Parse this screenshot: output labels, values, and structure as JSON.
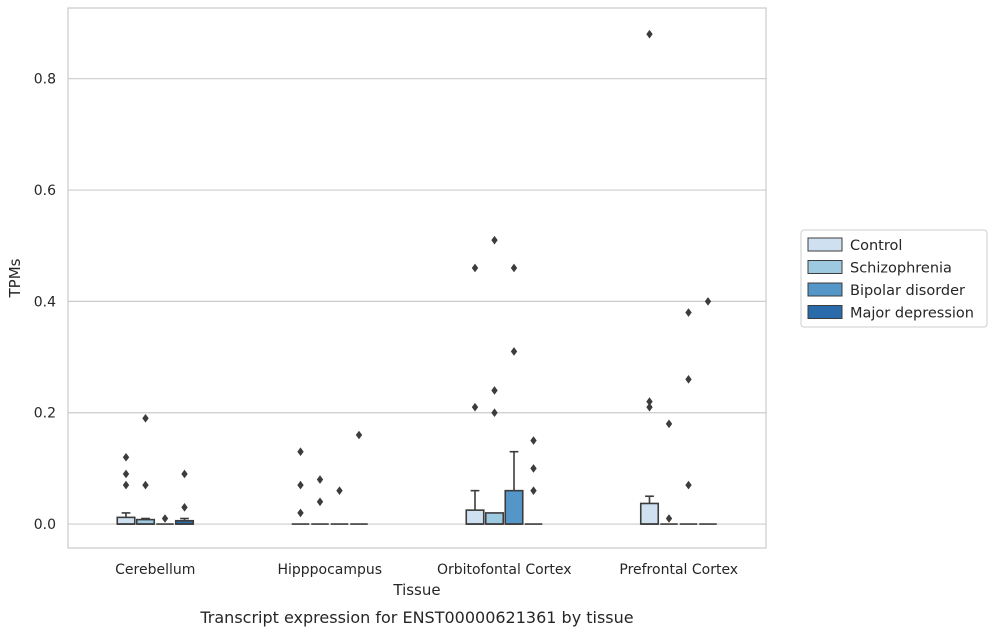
{
  "caption": "Transcript expression for ENST00000621361 by tissue",
  "chart_data": {
    "type": "box",
    "xlabel": "Tissue",
    "ylabel": "TPMs",
    "ylim": [
      -0.043,
      0.927
    ],
    "yticks": [
      0.0,
      0.2,
      0.4,
      0.6,
      0.8
    ],
    "ytick_labels": [
      "0.0",
      "0.2",
      "0.4",
      "0.6",
      "0.8"
    ],
    "grid": "horizontal",
    "legend_position": "right",
    "categories": [
      "Cerebellum",
      "Hipppocampus",
      "Orbitofontal Cortex",
      "Prefrontal Cortex"
    ],
    "series": [
      {
        "name": "Control",
        "color": "#cfe0f1",
        "boxes": [
          {
            "q1": 0.0,
            "median": 0.0,
            "q3": 0.012,
            "whisker_low": 0.0,
            "whisker_high": 0.02,
            "outliers": [
              0.12,
              0.09,
              0.07
            ]
          },
          {
            "q1": 0.0,
            "median": 0.0,
            "q3": 0.0,
            "whisker_low": 0.0,
            "whisker_high": 0.0,
            "outliers": [
              0.13,
              0.07,
              0.02
            ]
          },
          {
            "q1": 0.0,
            "median": 0.0,
            "q3": 0.025,
            "whisker_low": 0.0,
            "whisker_high": 0.06,
            "outliers": [
              0.46,
              0.21
            ]
          },
          {
            "q1": 0.0,
            "median": 0.0,
            "q3": 0.037,
            "whisker_low": 0.0,
            "whisker_high": 0.05,
            "outliers": [
              0.88,
              0.22,
              0.21
            ]
          }
        ]
      },
      {
        "name": "Schizophrenia",
        "color": "#9ecae1",
        "boxes": [
          {
            "q1": 0.0,
            "median": 0.0,
            "q3": 0.008,
            "whisker_low": 0.0,
            "whisker_high": 0.01,
            "outliers": [
              0.19,
              0.07
            ]
          },
          {
            "q1": 0.0,
            "median": 0.0,
            "q3": 0.0,
            "whisker_low": 0.0,
            "whisker_high": 0.0,
            "outliers": [
              0.08,
              0.04
            ]
          },
          {
            "q1": 0.0,
            "median": 0.0,
            "q3": 0.02,
            "whisker_low": 0.0,
            "whisker_high": 0.02,
            "outliers": [
              0.51,
              0.24,
              0.2
            ]
          },
          {
            "q1": 0.0,
            "median": 0.0,
            "q3": 0.0,
            "whisker_low": 0.0,
            "whisker_high": 0.0,
            "outliers": [
              0.18,
              0.01
            ]
          }
        ]
      },
      {
        "name": "Bipolar disorder",
        "color": "#5496c8",
        "boxes": [
          {
            "q1": 0.0,
            "median": 0.0,
            "q3": 0.0,
            "whisker_low": 0.0,
            "whisker_high": 0.0,
            "outliers": [
              0.01
            ]
          },
          {
            "q1": 0.0,
            "median": 0.0,
            "q3": 0.0,
            "whisker_low": 0.0,
            "whisker_high": 0.0,
            "outliers": [
              0.06
            ]
          },
          {
            "q1": 0.0,
            "median": 0.0,
            "q3": 0.06,
            "whisker_low": 0.0,
            "whisker_high": 0.13,
            "outliers": [
              0.46,
              0.31
            ]
          },
          {
            "q1": 0.0,
            "median": 0.0,
            "q3": 0.0,
            "whisker_low": 0.0,
            "whisker_high": 0.0,
            "outliers": [
              0.38,
              0.26,
              0.07
            ]
          }
        ]
      },
      {
        "name": "Major depression",
        "color": "#2a6bab",
        "boxes": [
          {
            "q1": 0.0,
            "median": 0.0,
            "q3": 0.006,
            "whisker_low": 0.0,
            "whisker_high": 0.01,
            "outliers": [
              0.09,
              0.03
            ]
          },
          {
            "q1": 0.0,
            "median": 0.0,
            "q3": 0.0,
            "whisker_low": 0.0,
            "whisker_high": 0.0,
            "outliers": [
              0.16
            ]
          },
          {
            "q1": 0.0,
            "median": 0.0,
            "q3": 0.0,
            "whisker_low": 0.0,
            "whisker_high": 0.0,
            "outliers": [
              0.15,
              0.1,
              0.06
            ]
          },
          {
            "q1": 0.0,
            "median": 0.0,
            "q3": 0.0,
            "whisker_low": 0.0,
            "whisker_high": 0.0,
            "outliers": [
              0.4
            ]
          }
        ]
      }
    ]
  }
}
